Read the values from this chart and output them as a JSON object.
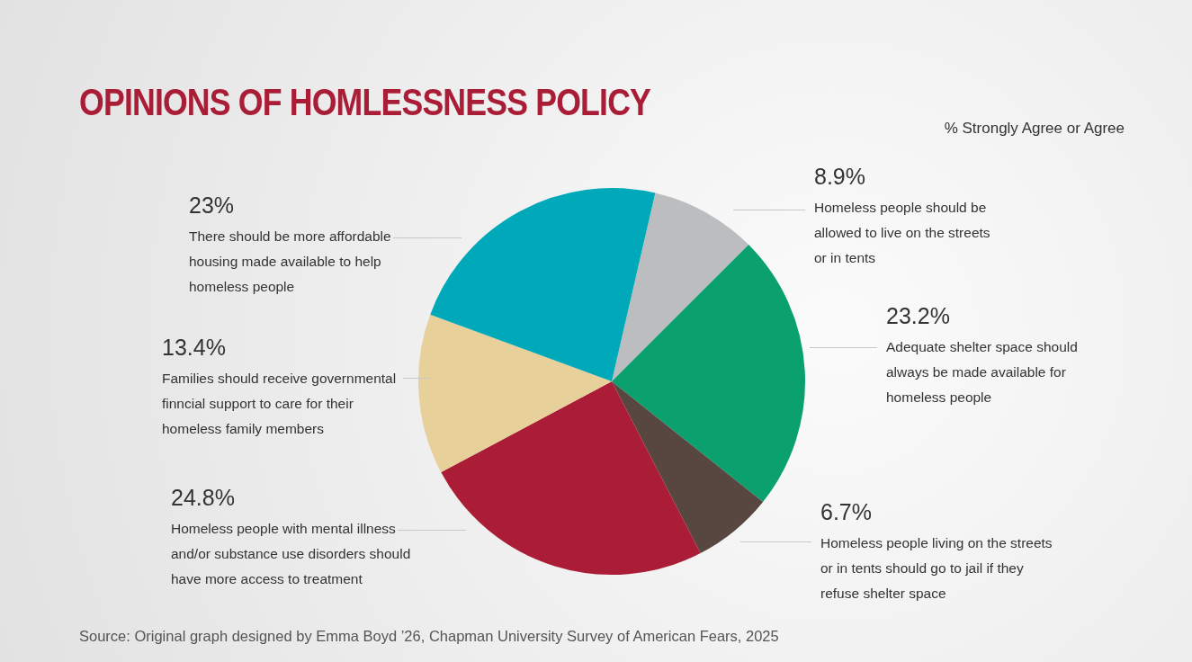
{
  "chart_data": {
    "type": "pie",
    "title": "OPINIONS OF HOMLESSNESS POLICY",
    "subtitle": "% Strongly Agree or Agree",
    "categories": [
      "Homeless people should be allowed to live on the streets or in tents",
      "Adequate shelter space should always be made available for homeless people",
      "Homeless people living on the streets or in tents should go to jail if they refuse shelter space",
      "Homeless people with mental illness and/or substance use disorders should have more access to treatment",
      "Families should receive governmental finncial support to care for their homeless family members",
      "There should be more affordable housing made available to help homeless people"
    ],
    "values": [
      8.9,
      23.2,
      6.7,
      24.8,
      13.4,
      23
    ],
    "value_labels": [
      "8.9%",
      "23.2%",
      "6.7%",
      "24.8%",
      "13.4%",
      "23%"
    ],
    "colors": [
      "#bcbdbf",
      "#0ba16f",
      "#574740",
      "#ab1c36",
      "#e8d09b",
      "#00a9b9"
    ],
    "legend": false,
    "annotations": [
      "Source: Original graph designed by Emma Boyd ’26, Chapman University Survey of American Fears, 2025"
    ]
  }
}
